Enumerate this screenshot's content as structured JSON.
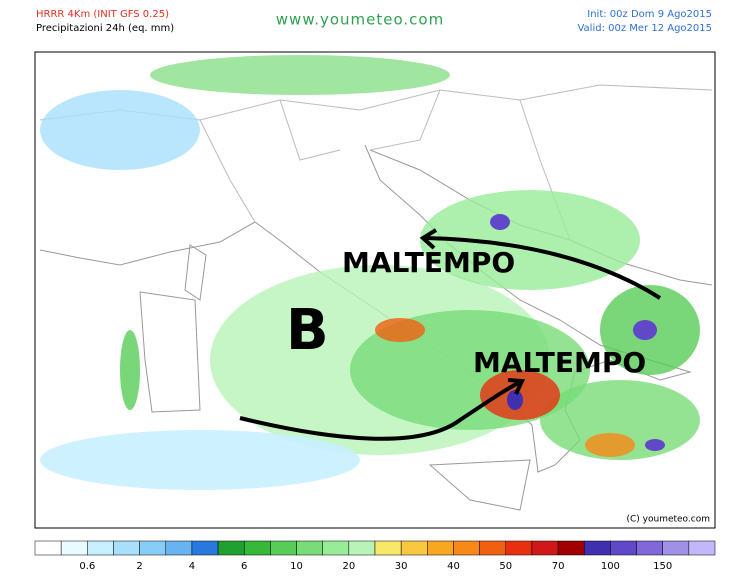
{
  "header": {
    "model": "HRRR 4Km (INIT GFS 0.25)",
    "product": "Precipitazioni 24h (eq. mm)",
    "site": "www.youmeteo.com",
    "init": "Init: 00z Dom 9  Ago2015",
    "valid": "Valid: 00z Mer  12 Ago2015"
  },
  "map": {
    "annotations": [
      "MALTEMPO",
      "B",
      "MALTEMPO"
    ],
    "copyright": "(C) youmeteo.com"
  },
  "legend": {
    "colors": [
      "#ffffff",
      "#e8fcff",
      "#c8f0ff",
      "#a8e0fc",
      "#88ccf8",
      "#68b4f0",
      "#2878e0",
      "#20a030",
      "#38b838",
      "#58cc58",
      "#78dc78",
      "#98ec98",
      "#b8f4b8",
      "#f8e868",
      "#f8c840",
      "#f8a820",
      "#f88818",
      "#f06010",
      "#e83010",
      "#d01818",
      "#a00000",
      "#4030b0",
      "#6048c8",
      "#8068d8",
      "#a090e8",
      "#c0b8f8"
    ],
    "labels": [
      0.6,
      2,
      4,
      6,
      10,
      20,
      30,
      40,
      50,
      70,
      100,
      150
    ]
  }
}
